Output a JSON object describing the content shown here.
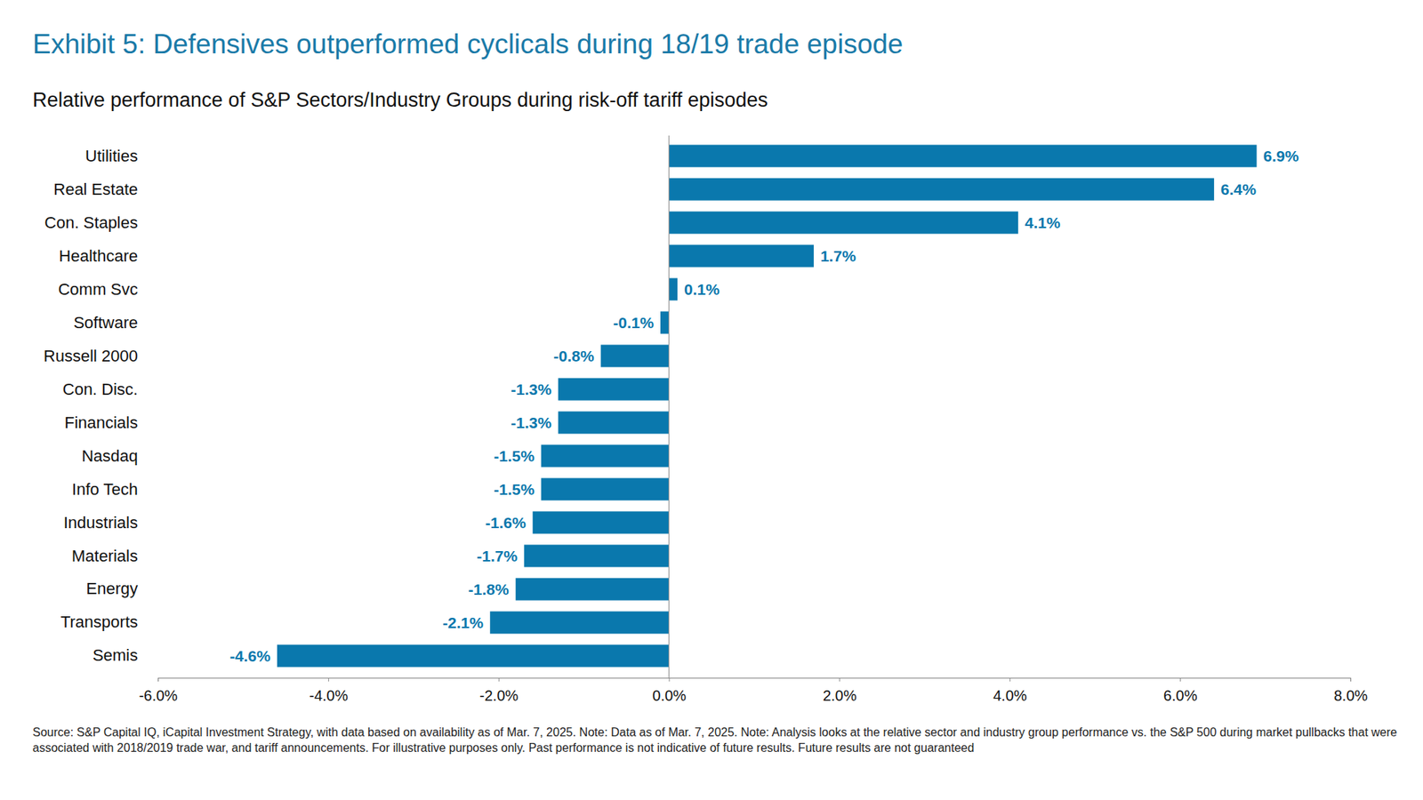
{
  "chart_data": {
    "type": "bar",
    "orientation": "horizontal",
    "title": "Exhibit 5: Defensives outperformed cyclicals during 18/19 trade episode",
    "subtitle": "Relative performance of S&P Sectors/Industry Groups during risk-off tariff episodes",
    "note": "Source: S&P Capital IQ, iCapital Investment Strategy, with data based on availability as of Mar. 7, 2025. Note: Data as of Mar. 7, 2025. Note: Analysis looks at the relative sector and industry group performance vs. the S&P 500 during market pullbacks that were associated with 2018/2019 trade war, and tariff announcements. For illustrative purposes only. Past performance is not indicative of future results. Future results are not guaranteed",
    "categories": [
      "Utilities",
      "Real Estate",
      "Con. Staples",
      "Healthcare",
      "Comm Svc",
      "Software",
      "Russell 2000",
      "Con. Disc.",
      "Financials",
      "Nasdaq",
      "Info Tech",
      "Industrials",
      "Materials",
      "Energy",
      "Transports",
      "Semis"
    ],
    "values": [
      6.9,
      6.4,
      4.1,
      1.7,
      0.1,
      -0.1,
      -0.8,
      -1.3,
      -1.3,
      -1.5,
      -1.5,
      -1.6,
      -1.7,
      -1.8,
      -2.1,
      -4.6
    ],
    "value_labels": [
      "6.9%",
      "6.4%",
      "4.1%",
      "1.7%",
      "0.1%",
      "-0.1%",
      "-0.8%",
      "-1.3%",
      "-1.3%",
      "-1.5%",
      "-1.5%",
      "-1.6%",
      "-1.7%",
      "-1.8%",
      "-2.1%",
      "-4.6%"
    ],
    "color": "#0a78ad",
    "data_labels": true,
    "grid": false,
    "xlim": [
      -6,
      8
    ],
    "xticks": [
      {
        "value": -6,
        "label": "-6.0%"
      },
      {
        "value": -4,
        "label": "-4.0%"
      },
      {
        "value": -2,
        "label": "-2.0%"
      },
      {
        "value": 0,
        "label": "0.0%"
      },
      {
        "value": 2,
        "label": "2.0%"
      },
      {
        "value": 4,
        "label": "4.0%"
      },
      {
        "value": 6,
        "label": "6.0%"
      },
      {
        "value": 8,
        "label": "8.0%"
      }
    ]
  }
}
